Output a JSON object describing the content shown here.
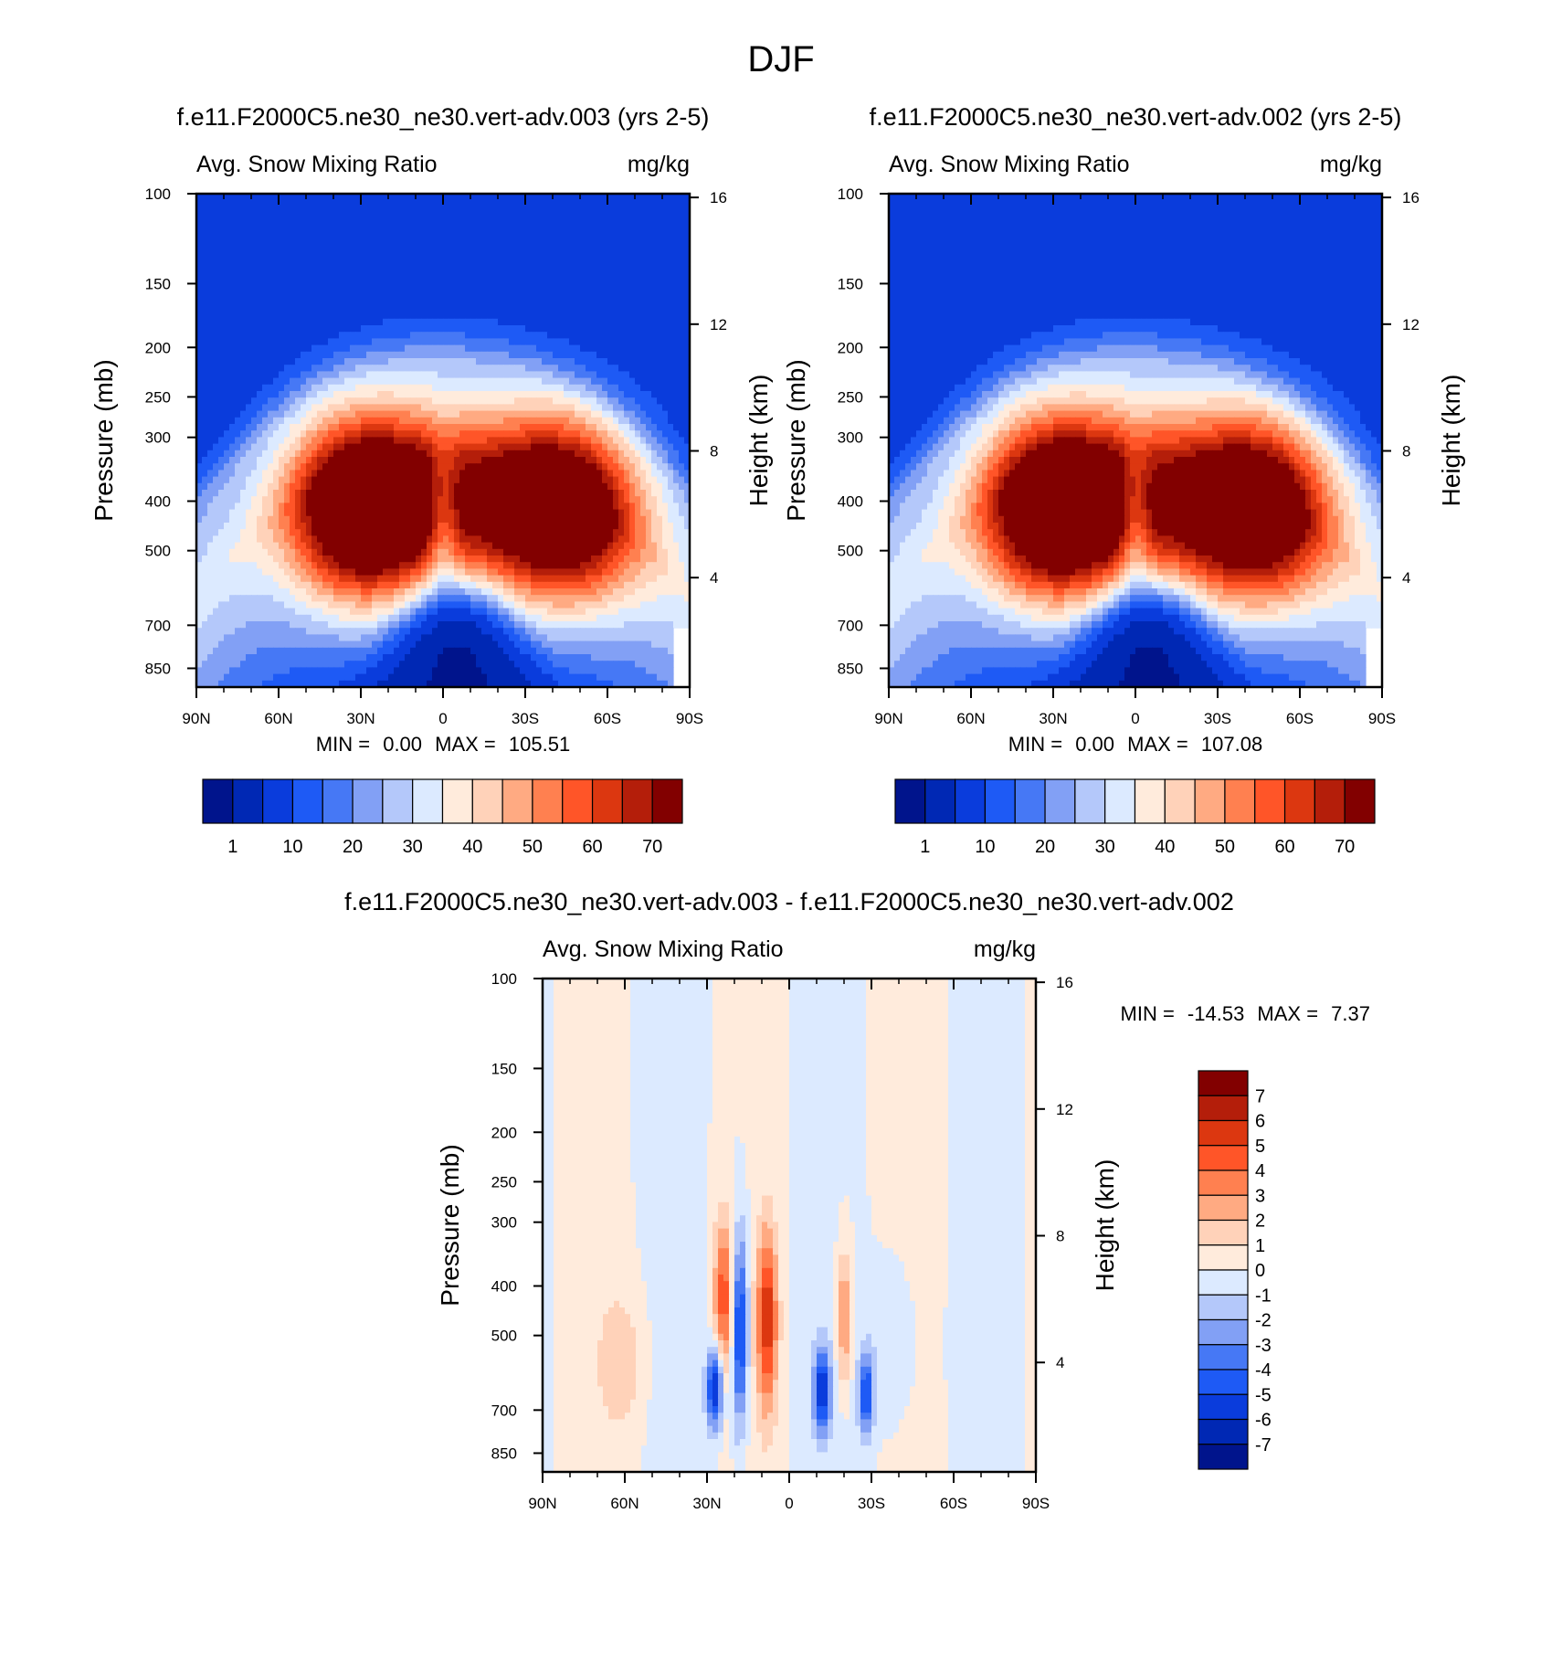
{
  "figure": {
    "title": "DJF"
  },
  "chart_data": [
    {
      "type": "heatmap",
      "title": "f.e11.F2000C5.ne30_ne30.vert-adv.003 (yrs 2-5)",
      "subtitle_left": "Avg. Snow Mixing Ratio",
      "subtitle_right": "mg/kg",
      "ylabel": "Pressure (mb)",
      "ylabel_right": "Height (km)",
      "x_ticks": [
        "90N",
        "60N",
        "30N",
        "0",
        "30S",
        "60S",
        "90S"
      ],
      "y_ticks": [
        "100",
        "150",
        "200",
        "250",
        "300",
        "400",
        "500",
        "700",
        "850"
      ],
      "y2_ticks": [
        "16",
        "12",
        "8",
        "4"
      ],
      "stats": {
        "min_label": "MIN =",
        "min": "0.00",
        "max_label": "MAX =",
        "max": "105.51"
      },
      "colorbar": {
        "orientation": "horizontal",
        "tick_labels": [
          "1",
          "10",
          "20",
          "30",
          "40",
          "50",
          "60",
          "70"
        ],
        "colors": [
          "#00148c",
          "#0028b4",
          "#0a3cdc",
          "#1e5af5",
          "#4678f5",
          "#82a0f5",
          "#b4c8fa",
          "#dceaff",
          "#ffebdc",
          "#ffd2b9",
          "#ffaa82",
          "#ff8050",
          "#ff5528",
          "#dc3710",
          "#b41e0a",
          "#820000"
        ]
      },
      "x_range_deg": [
        90,
        -90
      ],
      "p_range_mb": [
        100,
        925
      ],
      "features": {
        "peak_left": 90,
        "peak_right": 106,
        "core_left_lat": 33,
        "core_right_lat": -42
      }
    },
    {
      "type": "heatmap",
      "title": "f.e11.F2000C5.ne30_ne30.vert-adv.002 (yrs 2-5)",
      "subtitle_left": "Avg. Snow Mixing Ratio",
      "subtitle_right": "mg/kg",
      "ylabel": "Pressure (mb)",
      "ylabel_right": "Height (km)",
      "x_ticks": [
        "90N",
        "60N",
        "30N",
        "0",
        "30S",
        "60S",
        "90S"
      ],
      "y_ticks": [
        "100",
        "150",
        "200",
        "250",
        "300",
        "400",
        "500",
        "700",
        "850"
      ],
      "y2_ticks": [
        "16",
        "12",
        "8",
        "4"
      ],
      "stats": {
        "min_label": "MIN =",
        "min": "0.00",
        "max_label": "MAX =",
        "max": "107.08"
      },
      "colorbar": {
        "orientation": "horizontal",
        "tick_labels": [
          "1",
          "10",
          "20",
          "30",
          "40",
          "50",
          "60",
          "70"
        ],
        "colors": [
          "#00148c",
          "#0028b4",
          "#0a3cdc",
          "#1e5af5",
          "#4678f5",
          "#82a0f5",
          "#b4c8fa",
          "#dceaff",
          "#ffebdc",
          "#ffd2b9",
          "#ffaa82",
          "#ff8050",
          "#ff5528",
          "#dc3710",
          "#b41e0a",
          "#820000"
        ]
      },
      "x_range_deg": [
        90,
        -90
      ],
      "p_range_mb": [
        100,
        925
      ],
      "features": {
        "peak_left": 92,
        "peak_right": 107,
        "core_left_lat": 33,
        "core_right_lat": -42
      }
    },
    {
      "type": "heatmap",
      "title": "f.e11.F2000C5.ne30_ne30.vert-adv.003 - f.e11.F2000C5.ne30_ne30.vert-adv.002",
      "subtitle_left": "Avg. Snow Mixing Ratio",
      "subtitle_right": "mg/kg",
      "ylabel": "Pressure (mb)",
      "ylabel_right": "Height (km)",
      "x_ticks": [
        "90N",
        "60N",
        "30N",
        "0",
        "30S",
        "60S",
        "90S"
      ],
      "y_ticks": [
        "100",
        "150",
        "200",
        "250",
        "300",
        "400",
        "500",
        "700",
        "850"
      ],
      "y2_ticks": [
        "16",
        "12",
        "8",
        "4"
      ],
      "stats": {
        "min_label": "MIN =",
        "min": "-14.53",
        "max_label": "MAX =",
        "max": "7.37"
      },
      "colorbar": {
        "orientation": "vertical",
        "tick_labels": [
          "7",
          "6",
          "5",
          "4",
          "3",
          "2",
          "1",
          "0",
          "-1",
          "-2",
          "-3",
          "-4",
          "-5",
          "-6",
          "-7"
        ],
        "colors": [
          "#820000",
          "#b41e0a",
          "#dc3710",
          "#ff5528",
          "#ff8050",
          "#ffaa82",
          "#ffd2b9",
          "#ffebdc",
          "#dceaff",
          "#b4c8fa",
          "#82a0f5",
          "#4678f5",
          "#1e5af5",
          "#0a3cdc",
          "#0028b4",
          "#00148c"
        ]
      },
      "x_range_deg": [
        90,
        -90
      ],
      "p_range_mb": [
        100,
        925
      ],
      "features": {
        "dipoles_lat": [
          27,
          18,
          8,
          -12,
          -20,
          -28
        ],
        "dipole_amplitude": 7
      }
    }
  ]
}
